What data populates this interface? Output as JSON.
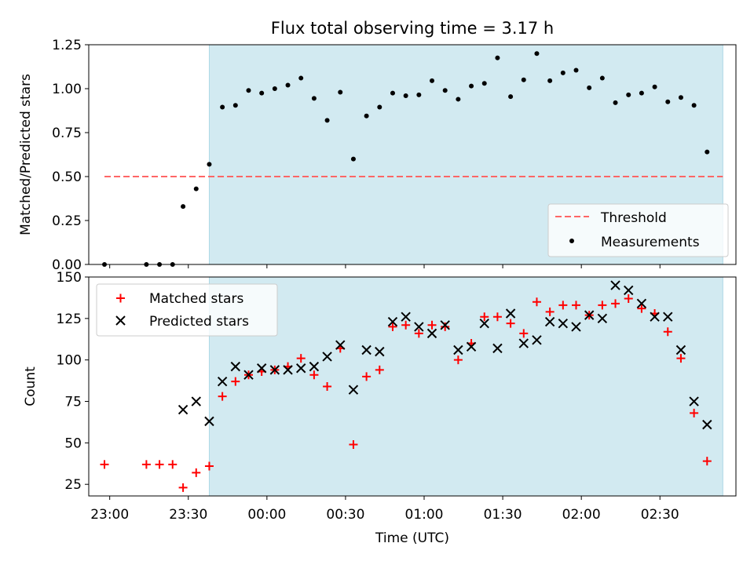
{
  "title": "Flux total observing time = 3.17 h",
  "colors": {
    "shade": "#add8e6",
    "threshold": "#ff6666",
    "measurement": "#000000",
    "matched": "#ff0000",
    "predicted": "#000000"
  },
  "chart_data": [
    {
      "type": "scatter",
      "ylabel": "Matched/Predicted stars",
      "ylim": [
        0.0,
        1.25
      ],
      "yticks": [
        "0.00",
        "0.25",
        "0.50",
        "0.75",
        "1.00",
        "1.25"
      ],
      "xlim": [
        "22:52",
        "02:59"
      ],
      "shaded_region": [
        "23:38",
        "02:54"
      ],
      "legend_position": "lower-right",
      "threshold": {
        "name": "Threshold",
        "y": 0.5,
        "x_range": [
          "22:58",
          "02:54"
        ]
      },
      "series": [
        {
          "name": "Measurements",
          "points": [
            [
              "22:58",
              0.0
            ],
            [
              "23:14",
              0.0
            ],
            [
              "23:19",
              0.0
            ],
            [
              "23:24",
              0.0
            ],
            [
              "23:28",
              0.33
            ],
            [
              "23:33",
              0.43
            ],
            [
              "23:38",
              0.57
            ],
            [
              "23:43",
              0.895
            ],
            [
              "23:48",
              0.905
            ],
            [
              "23:53",
              0.99
            ],
            [
              "23:58",
              0.975
            ],
            [
              "00:03",
              1.0
            ],
            [
              "00:08",
              1.02
            ],
            [
              "00:13",
              1.06
            ],
            [
              "00:18",
              0.945
            ],
            [
              "00:23",
              0.82
            ],
            [
              "00:28",
              0.98
            ],
            [
              "00:33",
              0.6
            ],
            [
              "00:38",
              0.845
            ],
            [
              "00:43",
              0.895
            ],
            [
              "00:48",
              0.975
            ],
            [
              "00:53",
              0.96
            ],
            [
              "00:58",
              0.965
            ],
            [
              "01:03",
              1.045
            ],
            [
              "01:08",
              0.99
            ],
            [
              "01:13",
              0.94
            ],
            [
              "01:18",
              1.015
            ],
            [
              "01:23",
              1.03
            ],
            [
              "01:28",
              1.175
            ],
            [
              "01:33",
              0.955
            ],
            [
              "01:38",
              1.05
            ],
            [
              "01:43",
              1.2
            ],
            [
              "01:48",
              1.045
            ],
            [
              "01:53",
              1.09
            ],
            [
              "01:58",
              1.105
            ],
            [
              "02:03",
              1.005
            ],
            [
              "02:08",
              1.06
            ],
            [
              "02:13",
              0.92
            ],
            [
              "02:18",
              0.965
            ],
            [
              "02:23",
              0.975
            ],
            [
              "02:28",
              1.01
            ],
            [
              "02:33",
              0.925
            ],
            [
              "02:38",
              0.95
            ],
            [
              "02:43",
              0.905
            ],
            [
              "02:48",
              0.64
            ]
          ]
        }
      ]
    },
    {
      "type": "scatter",
      "ylabel": "Count",
      "xlabel": "Time (UTC)",
      "ylim": [
        18,
        150
      ],
      "yticks": [
        "25",
        "50",
        "75",
        "100",
        "125",
        "150"
      ],
      "xticks": [
        "23:00",
        "23:30",
        "00:00",
        "00:30",
        "01:00",
        "01:30",
        "02:00",
        "02:30"
      ],
      "xlim": [
        "22:52",
        "02:59"
      ],
      "shaded_region": [
        "23:38",
        "02:54"
      ],
      "legend_position": "upper-left",
      "series": [
        {
          "name": "Matched stars",
          "marker": "+",
          "points": [
            [
              "22:58",
              37
            ],
            [
              "23:14",
              37
            ],
            [
              "23:19",
              37
            ],
            [
              "23:24",
              37
            ],
            [
              "23:28",
              23
            ],
            [
              "23:33",
              32
            ],
            [
              "23:38",
              36
            ],
            [
              "23:43",
              78
            ],
            [
              "23:48",
              87
            ],
            [
              "23:53",
              91
            ],
            [
              "23:58",
              93
            ],
            [
              "00:03",
              94
            ],
            [
              "00:08",
              96
            ],
            [
              "00:13",
              101
            ],
            [
              "00:18",
              91
            ],
            [
              "00:23",
              84
            ],
            [
              "00:28",
              107
            ],
            [
              "00:33",
              49
            ],
            [
              "00:38",
              90
            ],
            [
              "00:43",
              94
            ],
            [
              "00:48",
              120
            ],
            [
              "00:53",
              121
            ],
            [
              "00:58",
              116
            ],
            [
              "01:03",
              121
            ],
            [
              "01:08",
              120
            ],
            [
              "01:13",
              100
            ],
            [
              "01:18",
              110
            ],
            [
              "01:23",
              126
            ],
            [
              "01:28",
              126
            ],
            [
              "01:33",
              122
            ],
            [
              "01:38",
              116
            ],
            [
              "01:43",
              135
            ],
            [
              "01:48",
              129
            ],
            [
              "01:53",
              133
            ],
            [
              "01:58",
              133
            ],
            [
              "02:03",
              127
            ],
            [
              "02:08",
              133
            ],
            [
              "02:13",
              134
            ],
            [
              "02:18",
              137
            ],
            [
              "02:23",
              131
            ],
            [
              "02:28",
              128
            ],
            [
              "02:33",
              117
            ],
            [
              "02:38",
              101
            ],
            [
              "02:43",
              68
            ],
            [
              "02:48",
              39
            ]
          ]
        },
        {
          "name": "Predicted stars",
          "marker": "x",
          "points": [
            [
              "23:28",
              70
            ],
            [
              "23:33",
              75
            ],
            [
              "23:38",
              63
            ],
            [
              "23:43",
              87
            ],
            [
              "23:48",
              96
            ],
            [
              "23:53",
              91
            ],
            [
              "23:58",
              95
            ],
            [
              "00:03",
              94
            ],
            [
              "00:08",
              94
            ],
            [
              "00:13",
              95
            ],
            [
              "00:18",
              96
            ],
            [
              "00:23",
              102
            ],
            [
              "00:28",
              109
            ],
            [
              "00:33",
              82
            ],
            [
              "00:38",
              106
            ],
            [
              "00:43",
              105
            ],
            [
              "00:48",
              123
            ],
            [
              "00:53",
              126
            ],
            [
              "00:58",
              120
            ],
            [
              "01:03",
              116
            ],
            [
              "01:08",
              121
            ],
            [
              "01:13",
              106
            ],
            [
              "01:18",
              108
            ],
            [
              "01:23",
              122
            ],
            [
              "01:28",
              107
            ],
            [
              "01:33",
              128
            ],
            [
              "01:38",
              110
            ],
            [
              "01:43",
              112
            ],
            [
              "01:48",
              123
            ],
            [
              "01:53",
              122
            ],
            [
              "01:58",
              120
            ],
            [
              "02:03",
              127
            ],
            [
              "02:08",
              125
            ],
            [
              "02:13",
              145
            ],
            [
              "02:18",
              142
            ],
            [
              "02:23",
              134
            ],
            [
              "02:28",
              126
            ],
            [
              "02:33",
              126
            ],
            [
              "02:38",
              106
            ],
            [
              "02:43",
              75
            ],
            [
              "02:48",
              61
            ]
          ]
        }
      ]
    }
  ]
}
